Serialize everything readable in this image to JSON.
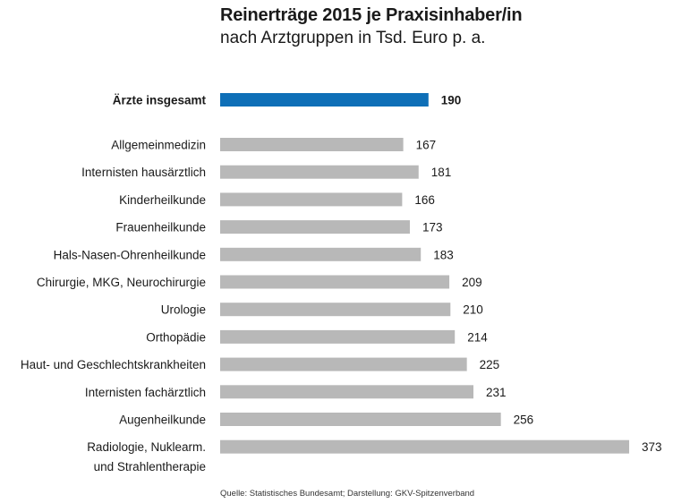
{
  "title": "Reinerträge 2015 je Praxisinhaber/in",
  "subtitle": "nach Arztgruppen in Tsd. Euro p. a.",
  "source": "Quelle: Statistisches Bundesamt; Darstellung: GKV-Spitzenverband",
  "colors": {
    "highlight": "#0e6fb7",
    "bar": "#b8b8b8",
    "text": "#1a1a1a"
  },
  "chart_data": {
    "type": "bar",
    "orientation": "horizontal",
    "title": "Reinerträge 2015 je Praxisinhaber/in",
    "subtitle": "nach Arztgruppen in Tsd. Euro p. a.",
    "xlabel": "",
    "ylabel": "",
    "unit": "Tsd. Euro p. a.",
    "xlim": [
      0,
      373
    ],
    "grid": false,
    "categories": [
      "Ärzte insgesamt",
      "Allgemeinmedizin",
      "Internisten hausärztlich",
      "Kinderheilkunde",
      "Frauenheilkunde",
      "Hals-Nasen-Ohrenheilkunde",
      "Chirurgie, MKG, Neurochirurgie",
      "Urologie",
      "Orthopädie",
      "Haut- und Geschlechtskrankheiten",
      "Internisten fachärztlich",
      "Augenheilkunde",
      "Radiologie, Nuklearm.|und Strahlentherapie"
    ],
    "values": [
      190,
      167,
      181,
      166,
      173,
      183,
      209,
      210,
      214,
      225,
      231,
      256,
      373
    ],
    "highlighted": [
      true,
      false,
      false,
      false,
      false,
      false,
      false,
      false,
      false,
      false,
      false,
      false,
      false
    ]
  }
}
